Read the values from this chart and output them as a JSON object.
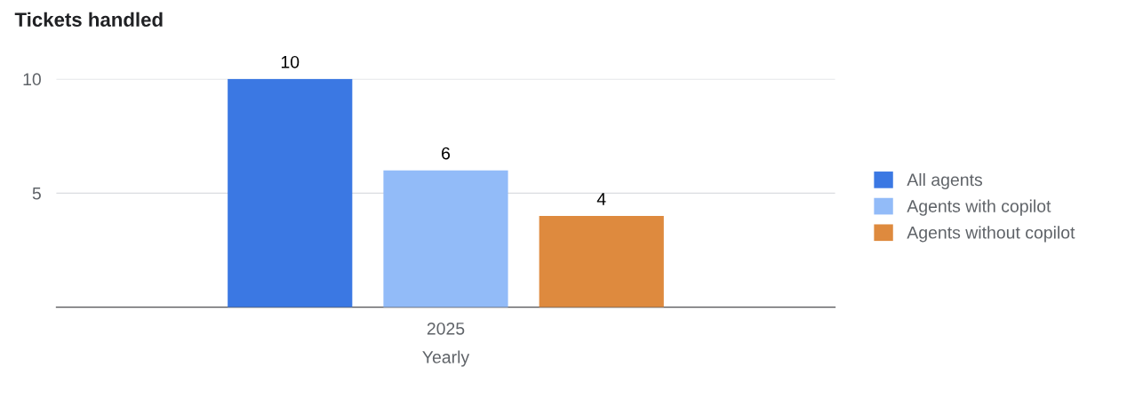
{
  "chart_data": {
    "type": "bar",
    "title": "Tickets handled",
    "xlabel": "Yearly",
    "categories": [
      "2025"
    ],
    "series": [
      {
        "name": "All agents",
        "color": "#3b78e3",
        "values": [
          10
        ]
      },
      {
        "name": "Agents with copilot",
        "color": "#92bbf8",
        "values": [
          6
        ]
      },
      {
        "name": "Agents without copilot",
        "color": "#de8a3e",
        "values": [
          4
        ]
      }
    ],
    "ylim": [
      0,
      10
    ],
    "yticks": [
      5,
      10
    ],
    "grid": "y",
    "legend": "right",
    "data_labels": true
  }
}
